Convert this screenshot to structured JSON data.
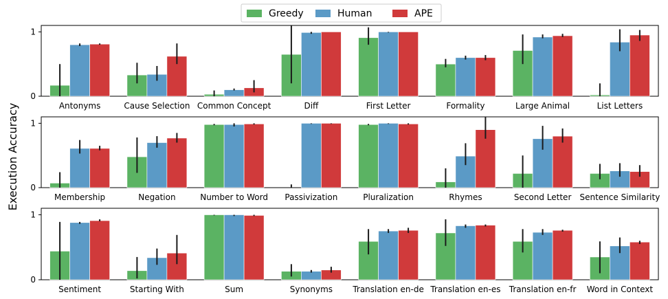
{
  "figure": {
    "ylabel": "Execution Accuracy",
    "legend": {
      "placement": "top-center",
      "entries": [
        {
          "name": "Greedy",
          "color": "#5bb363"
        },
        {
          "name": "Human",
          "color": "#5b9ac6"
        },
        {
          "name": "APE",
          "color": "#d03a3b"
        }
      ]
    }
  },
  "chart_data": [
    {
      "type": "bar",
      "ylim": [
        0,
        1.1
      ],
      "yticks": [
        "0",
        "1"
      ],
      "categories": [
        "Antonyms",
        "Cause Selection",
        "Common Concept",
        "Diff",
        "First Letter",
        "Formality",
        "Large Animal",
        "List Letters"
      ],
      "series": [
        {
          "name": "Greedy",
          "values": [
            0.17,
            0.33,
            0.03,
            0.65,
            0.91,
            0.5,
            0.71,
            0.02
          ],
          "err_low": [
            0.0,
            0.2,
            0.0,
            0.2,
            0.8,
            0.45,
            0.5,
            0.0
          ],
          "err_high": [
            0.5,
            0.52,
            0.09,
            1.1,
            1.07,
            0.58,
            0.96,
            0.2
          ]
        },
        {
          "name": "Human",
          "values": [
            0.8,
            0.34,
            0.1,
            0.99,
            1.0,
            0.6,
            0.92,
            0.84
          ],
          "err_low": [
            0.78,
            0.24,
            0.09,
            0.97,
            0.99,
            0.57,
            0.9,
            0.7
          ],
          "err_high": [
            0.82,
            0.47,
            0.12,
            1.0,
            1.0,
            0.63,
            0.96,
            1.04
          ]
        },
        {
          "name": "APE",
          "values": [
            0.81,
            0.62,
            0.13,
            1.0,
            1.0,
            0.6,
            0.94,
            0.95
          ],
          "err_low": [
            0.8,
            0.5,
            0.06,
            1.0,
            1.0,
            0.56,
            0.92,
            0.86
          ],
          "err_high": [
            0.82,
            0.82,
            0.25,
            1.0,
            1.0,
            0.64,
            0.97,
            1.03
          ]
        }
      ]
    },
    {
      "type": "bar",
      "ylim": [
        0,
        1.1
      ],
      "yticks": [
        "0",
        "1"
      ],
      "categories": [
        "Membership",
        "Negation",
        "Number to Word",
        "Passivization",
        "Pluralization",
        "Rhymes",
        "Second Letter",
        "Sentence Similarity"
      ],
      "series": [
        {
          "name": "Greedy",
          "values": [
            0.07,
            0.48,
            0.98,
            0.0,
            0.98,
            0.09,
            0.22,
            0.22
          ],
          "err_low": [
            0.0,
            0.23,
            0.97,
            0.0,
            0.97,
            0.0,
            0.0,
            0.13
          ],
          "err_high": [
            0.24,
            0.78,
            0.99,
            0.05,
            0.99,
            0.3,
            0.5,
            0.37
          ]
        },
        {
          "name": "Human",
          "values": [
            0.61,
            0.7,
            0.98,
            1.0,
            1.0,
            0.49,
            0.76,
            0.26
          ],
          "err_low": [
            0.53,
            0.62,
            0.95,
            0.99,
            0.99,
            0.35,
            0.59,
            0.17
          ],
          "err_high": [
            0.74,
            0.8,
            1.0,
            1.0,
            1.0,
            0.69,
            0.96,
            0.38
          ]
        },
        {
          "name": "APE",
          "values": [
            0.61,
            0.77,
            0.99,
            1.0,
            0.99,
            0.9,
            0.8,
            0.25
          ],
          "err_low": [
            0.58,
            0.7,
            0.98,
            0.99,
            0.98,
            0.76,
            0.7,
            0.17
          ],
          "err_high": [
            0.65,
            0.85,
            1.0,
            1.0,
            1.0,
            1.1,
            0.92,
            0.35
          ]
        }
      ]
    },
    {
      "type": "bar",
      "ylim": [
        0,
        1.1
      ],
      "yticks": [
        "0",
        "1"
      ],
      "categories": [
        "Sentiment",
        "Starting With",
        "Sum",
        "Synonyms",
        "Translation en-de",
        "Translation en-es",
        "Translation en-fr",
        "Word in Context"
      ],
      "series": [
        {
          "name": "Greedy",
          "values": [
            0.44,
            0.14,
            1.0,
            0.13,
            0.59,
            0.72,
            0.59,
            0.35
          ],
          "err_low": [
            0.0,
            0.02,
            0.99,
            0.05,
            0.39,
            0.52,
            0.42,
            0.1
          ],
          "err_high": [
            0.89,
            0.35,
            1.0,
            0.24,
            0.78,
            0.93,
            0.78,
            0.59
          ]
        },
        {
          "name": "Human",
          "values": [
            0.88,
            0.34,
            1.0,
            0.13,
            0.75,
            0.83,
            0.73,
            0.52
          ],
          "err_low": [
            0.86,
            0.23,
            0.98,
            0.11,
            0.72,
            0.8,
            0.69,
            0.41
          ],
          "err_high": [
            0.89,
            0.48,
            1.0,
            0.15,
            0.78,
            0.85,
            0.78,
            0.65
          ]
        },
        {
          "name": "APE",
          "values": [
            0.91,
            0.41,
            0.99,
            0.15,
            0.76,
            0.84,
            0.76,
            0.58
          ],
          "err_low": [
            0.9,
            0.24,
            0.98,
            0.11,
            0.72,
            0.82,
            0.74,
            0.55
          ],
          "err_high": [
            0.93,
            0.69,
            1.0,
            0.2,
            0.8,
            0.85,
            0.77,
            0.6
          ]
        }
      ]
    }
  ]
}
